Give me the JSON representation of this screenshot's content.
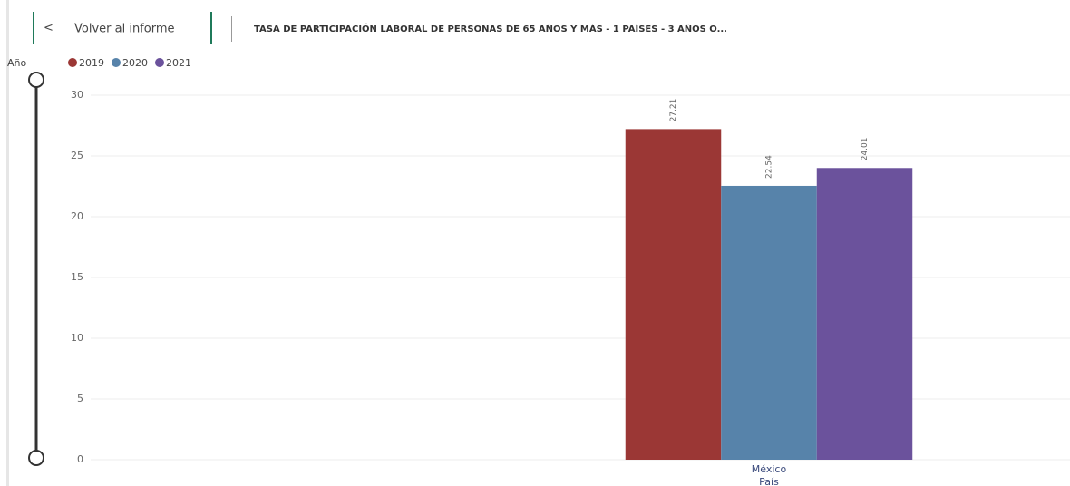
{
  "back_button": {
    "label": "Volver al informe"
  },
  "header_title": "TASA DE PARTICIPACIÓN LABORAL DE PERSONAS DE 65 AÑOS Y MÁS - 1 PAÍSES - 3 AÑOS O...",
  "chart_data": {
    "type": "bar",
    "legend_title": "Año",
    "categories": [
      "México"
    ],
    "x_label": "País",
    "series": [
      {
        "name": "2019",
        "color": "#9b3735",
        "values": [
          27.21
        ]
      },
      {
        "name": "2020",
        "color": "#5783aa",
        "values": [
          22.54
        ]
      },
      {
        "name": "2021",
        "color": "#6b529c",
        "values": [
          24.01
        ]
      }
    ],
    "ylim": [
      0,
      30
    ],
    "yticks": [
      0,
      5,
      10,
      15,
      20,
      25,
      30
    ],
    "grid": true
  }
}
